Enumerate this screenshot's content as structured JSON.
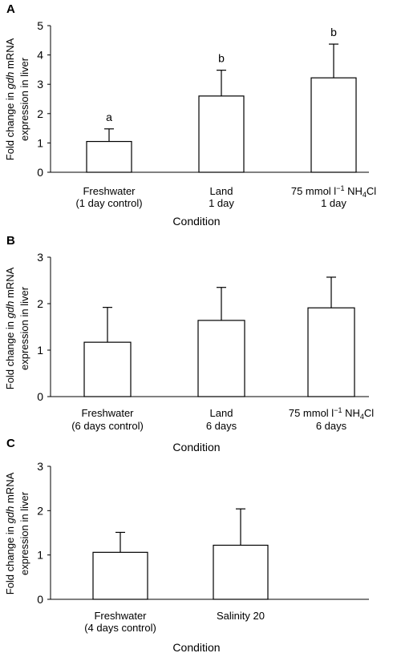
{
  "chart_data": [
    {
      "panel_label": "A",
      "type": "bar",
      "ylabel_line1_pre": "Fold change in ",
      "ylabel_line1_gene": "gdh",
      "ylabel_line1_post": " mRNA",
      "ylabel_line2": "expression in liver",
      "xlabel": "Condition",
      "ylim": [
        0,
        5
      ],
      "yticks": [
        "0",
        "1",
        "2",
        "3",
        "4",
        "5"
      ],
      "categories": [
        {
          "line1": "Freshwater",
          "line2": "(1 day control)"
        },
        {
          "line1": "Land",
          "line2": "1 day"
        },
        {
          "line1_pre": "75 mmol l",
          "line1_sup": "−1",
          "line1_mid": " NH",
          "line1_sub": "4",
          "line1_post": "Cl",
          "line2": "1 day"
        }
      ],
      "values": [
        1.05,
        2.6,
        3.22
      ],
      "errors": [
        0.43,
        0.88,
        1.15
      ],
      "letters": [
        "a",
        "b",
        "b"
      ]
    },
    {
      "panel_label": "B",
      "type": "bar",
      "ylabel_line1_pre": "Fold change in ",
      "ylabel_line1_gene": "gdh",
      "ylabel_line1_post": " mRNA",
      "ylabel_line2": "expression in liver",
      "xlabel": "Condition",
      "ylim": [
        0,
        3
      ],
      "yticks": [
        "0",
        "1",
        "2",
        "3"
      ],
      "categories": [
        {
          "line1": "Freshwater",
          "line2": "(6 days control)"
        },
        {
          "line1": "Land",
          "line2": "6 days"
        },
        {
          "line1_pre": "75 mmol l",
          "line1_sup": "−1",
          "line1_mid": " NH",
          "line1_sub": "4",
          "line1_post": "Cl",
          "line2": "6 days"
        }
      ],
      "values": [
        1.17,
        1.64,
        1.91
      ],
      "errors": [
        0.75,
        0.71,
        0.66
      ]
    },
    {
      "panel_label": "C",
      "type": "bar",
      "ylabel_line1_pre": "Fold change in ",
      "ylabel_line1_gene": "gdh",
      "ylabel_line1_post": " mRNA",
      "ylabel_line2": "expression in liver",
      "xlabel": "Condition",
      "ylim": [
        0,
        3
      ],
      "yticks": [
        "0",
        "1",
        "2",
        "3"
      ],
      "categories": [
        {
          "line1": "Freshwater",
          "line2": "(4 days control)"
        },
        {
          "line1": "Salinity 20",
          "line2": ""
        }
      ],
      "values": [
        1.06,
        1.22
      ],
      "errors": [
        0.45,
        0.82
      ]
    }
  ]
}
